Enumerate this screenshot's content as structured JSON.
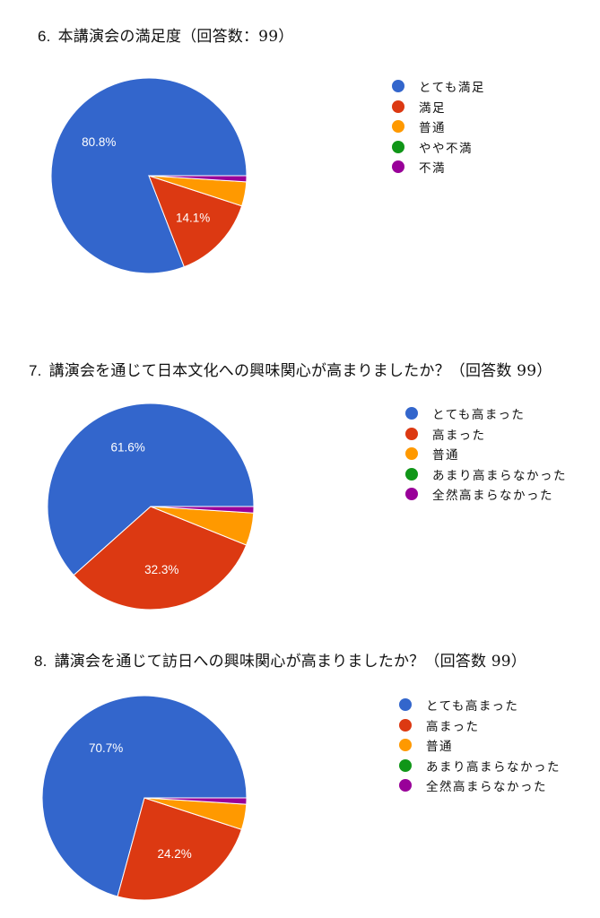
{
  "colors": [
    "#3366cc",
    "#dc3912",
    "#ff9900",
    "#109618",
    "#990099"
  ],
  "chart_data": [
    {
      "type": "pie",
      "title_number": "6.",
      "title": "本講演会の満足度（回答数：99）",
      "categories": [
        "とても満足",
        "満足",
        "普通",
        "やや不満",
        "不満"
      ],
      "values": [
        80.8,
        14.1,
        4.0,
        0.0,
        1.0
      ],
      "labels": [
        "80.8%",
        "14.1%",
        "",
        "",
        ""
      ],
      "legend_position": "right"
    },
    {
      "type": "pie",
      "title_number": "7.",
      "title": "講演会を通じて日本文化への興味関心が高まりましたか？（回答数 99）",
      "categories": [
        "とても高まった",
        "高まった",
        "普通",
        "あまり高まらなかった",
        "全然高まらなかった"
      ],
      "values": [
        61.6,
        32.3,
        5.1,
        0.0,
        1.0
      ],
      "labels": [
        "61.6%",
        "32.3%",
        "",
        "",
        ""
      ],
      "legend_position": "right"
    },
    {
      "type": "pie",
      "title_number": "8.",
      "title": "講演会を通じて訪日への興味関心が高まりましたか？（回答数 99）",
      "categories": [
        "とても高まった",
        "高まった",
        "普通",
        "あまり高まらなかった",
        "全然高まらなかった"
      ],
      "values": [
        70.7,
        24.2,
        4.0,
        0.0,
        1.0
      ],
      "labels": [
        "70.7%",
        "24.2%",
        "",
        "",
        ""
      ],
      "legend_position": "right"
    }
  ]
}
